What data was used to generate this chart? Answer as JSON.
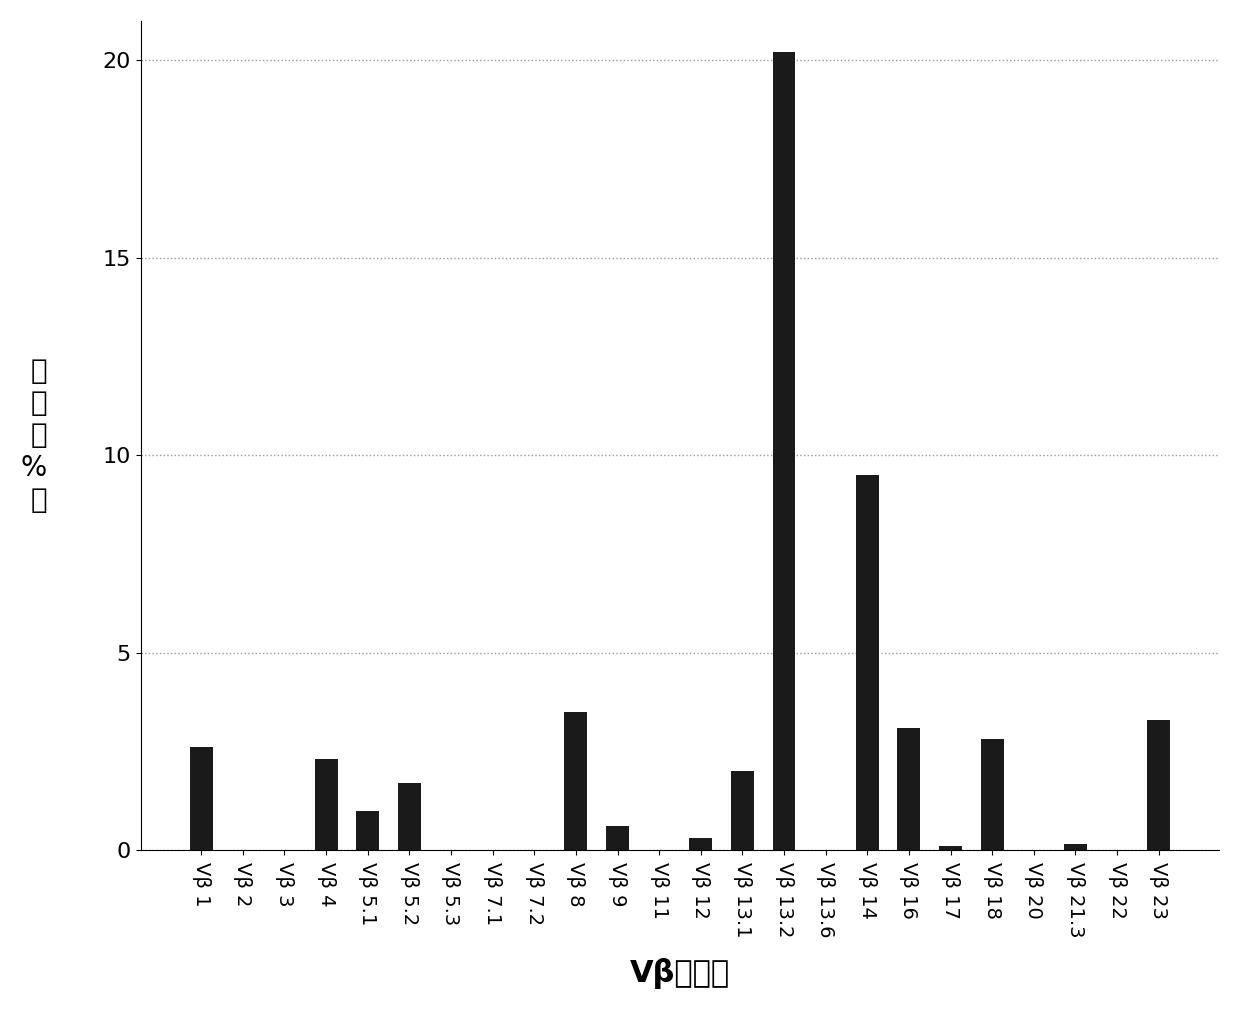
{
  "categories": [
    "Vβ 1",
    "Vβ 2",
    "Vβ 3",
    "Vβ 4",
    "Vβ 5.1",
    "Vβ 5.2",
    "Vβ 5.3",
    "Vβ 7.1",
    "Vβ 7.2",
    "Vβ 8",
    "Vβ 9",
    "Vβ 11",
    "Vβ 12",
    "Vβ 13.1",
    "Vβ 13.2",
    "Vβ 13.6",
    "Vβ 14",
    "Vβ 16",
    "Vβ 17",
    "Vβ 18",
    "Vβ 20",
    "Vβ 21.3",
    "Vβ 22",
    "Vβ 23"
  ],
  "values": [
    2.6,
    0.0,
    0.0,
    2.3,
    1.0,
    1.7,
    0.0,
    0.0,
    0.0,
    3.5,
    0.6,
    0.0,
    0.3,
    2.0,
    20.2,
    0.0,
    9.5,
    3.1,
    0.1,
    2.8,
    0.0,
    0.15,
    0.0,
    3.3
  ],
  "bar_color": "#1a1a1a",
  "ylabel_chars": [
    "比",
    "例",
    "（",
    "%",
    "）"
  ],
  "xlabel": "Vβ連鎖段",
  "xlabel_display": "Vβ 連鎖段",
  "ylim": [
    0,
    21
  ],
  "yticks": [
    0,
    5,
    10,
    15,
    20
  ],
  "grid_color": "#999999",
  "bar_width": 0.55,
  "ylabel_fontsize": 20,
  "xlabel_fontsize": 22,
  "ytick_fontsize": 16,
  "xtick_fontsize": 14,
  "figsize": [
    12.4,
    10.1
  ],
  "dpi": 100
}
